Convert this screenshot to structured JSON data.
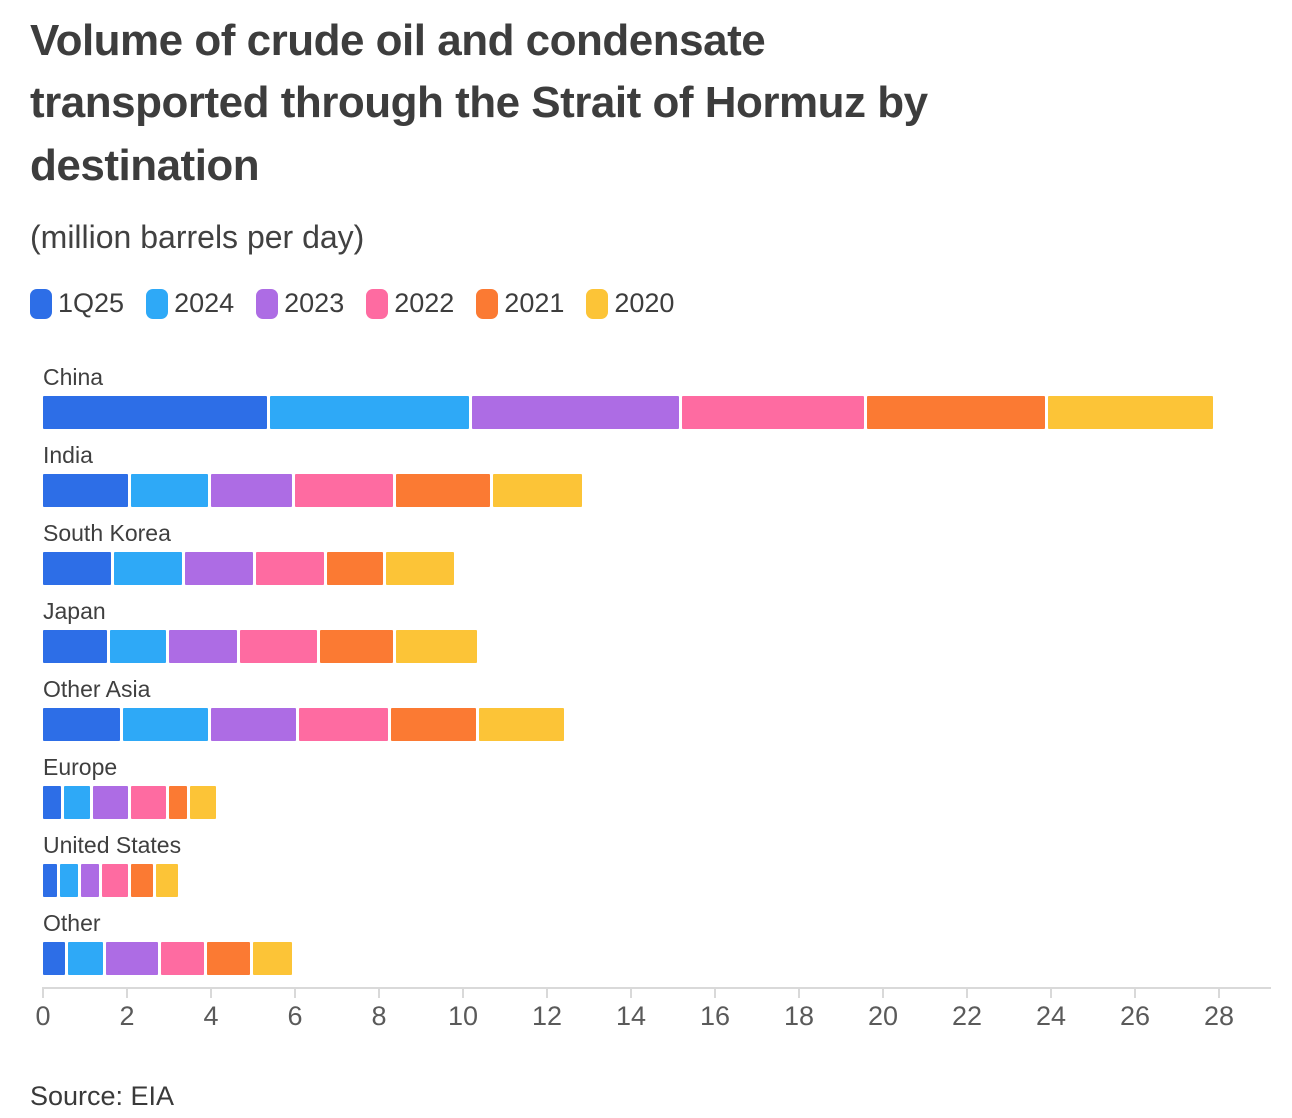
{
  "header": {
    "title_lines": [
      "Volume of crude oil and condensate",
      "transported through the Strait of Hormuz by",
      "destination"
    ],
    "subtitle": "(million barrels per day)"
  },
  "source": "Source: EIA",
  "chart_data": {
    "type": "bar",
    "orientation": "horizontal",
    "stacked": true,
    "title": "Volume of crude oil and condensate transported through the Strait of Hormuz by destination",
    "subtitle": "(million barrels per day)",
    "unit": "million barrels per day",
    "legend_position": "top",
    "grid": false,
    "xlim": [
      0,
      28
    ],
    "x_ticks": [
      0,
      2,
      4,
      6,
      8,
      10,
      12,
      14,
      16,
      18,
      20,
      22,
      24,
      26,
      28
    ],
    "categories": [
      "China",
      "India",
      "South Korea",
      "Japan",
      "Other Asia",
      "Europe",
      "United States",
      "Other"
    ],
    "series": [
      {
        "name": "1Q25",
        "color": "#2d6ee7",
        "values": [
          5.4,
          2.1,
          1.7,
          1.6,
          1.9,
          0.5,
          0.4,
          0.6
        ]
      },
      {
        "name": "2024",
        "color": "#2ea9f7",
        "values": [
          4.8,
          1.9,
          1.7,
          1.4,
          2.1,
          0.7,
          0.5,
          0.9
        ]
      },
      {
        "name": "2023",
        "color": "#ad6ce4",
        "values": [
          5.0,
          2.0,
          1.7,
          1.7,
          2.1,
          0.9,
          0.5,
          1.3
        ]
      },
      {
        "name": "2022",
        "color": "#fe6ba1",
        "values": [
          4.4,
          2.4,
          1.7,
          1.9,
          2.2,
          0.9,
          0.7,
          1.1
        ]
      },
      {
        "name": "2021",
        "color": "#fb7a33",
        "values": [
          4.3,
          2.3,
          1.4,
          1.8,
          2.1,
          0.5,
          0.6,
          1.1
        ]
      },
      {
        "name": "2020",
        "color": "#fcc437",
        "values": [
          4.0,
          2.2,
          1.7,
          2.0,
          2.1,
          0.7,
          0.6,
          1.0
        ]
      }
    ],
    "totals": [
      27.9,
      12.9,
      9.9,
      10.4,
      12.5,
      4.2,
      3.3,
      6.0
    ]
  }
}
